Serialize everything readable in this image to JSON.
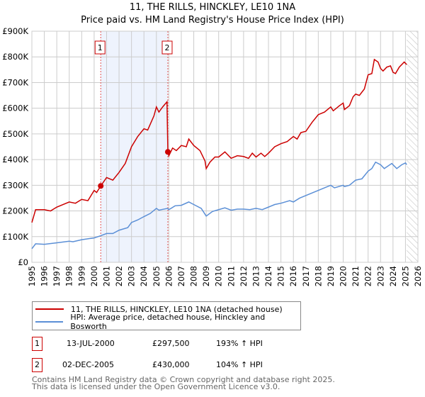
{
  "chart_data": {
    "type": "line",
    "title": "11, THE RILLS, HINCKLEY, LE10 1NA",
    "subtitle": "Price paid vs. HM Land Registry's House Price Index (HPI)",
    "xlim": [
      1995,
      2026
    ],
    "ylim": [
      0,
      900000
    ],
    "y_ticks": [
      {
        "v": 0,
        "label": "£0"
      },
      {
        "v": 100000,
        "label": "£100K"
      },
      {
        "v": 200000,
        "label": "£200K"
      },
      {
        "v": 300000,
        "label": "£300K"
      },
      {
        "v": 400000,
        "label": "£400K"
      },
      {
        "v": 500000,
        "label": "£500K"
      },
      {
        "v": 600000,
        "label": "£600K"
      },
      {
        "v": 700000,
        "label": "£700K"
      },
      {
        "v": 800000,
        "label": "£800K"
      },
      {
        "v": 900000,
        "label": "£900K"
      }
    ],
    "x_ticks": [
      1995,
      1996,
      1997,
      1998,
      1999,
      2000,
      2001,
      2002,
      2003,
      2004,
      2005,
      2006,
      2007,
      2008,
      2009,
      2010,
      2011,
      2012,
      2013,
      2014,
      2015,
      2016,
      2017,
      2018,
      2019,
      2020,
      2021,
      2022,
      2023,
      2024,
      2025,
      2026
    ],
    "grid": true,
    "shaded_range": [
      2000.53,
      2005.92
    ],
    "hatched_from": 2025.1,
    "series": [
      {
        "name": "11, THE RILLS, HINCKLEY, LE10 1NA (detached house)",
        "color": "#cc0000",
        "x": [
          1995,
          1995.3,
          1996,
          1996.5,
          1997,
          1998,
          1998.5,
          1999,
          1999.5,
          2000,
          2000.2,
          2000.53,
          2001,
          2001.5,
          2002,
          2002.5,
          2003,
          2003.5,
          2004,
          2004.3,
          2004.8,
          2005,
          2005.2,
          2005.5,
          2005.85,
          2005.92,
          2006,
          2006.3,
          2006.6,
          2007,
          2007.4,
          2007.6,
          2008,
          2008.5,
          2008.9,
          2009,
          2009.3,
          2009.7,
          2010,
          2010.5,
          2011,
          2011.5,
          2012,
          2012.4,
          2012.7,
          2013,
          2013.4,
          2013.7,
          2014,
          2014.5,
          2015,
          2015.5,
          2016,
          2016.3,
          2016.6,
          2017,
          2017.5,
          2018,
          2018.5,
          2019,
          2019.2,
          2019.7,
          2020,
          2020.1,
          2020.5,
          2020.8,
          2021,
          2021.3,
          2021.7,
          2022,
          2022.3,
          2022.5,
          2022.8,
          2023,
          2023.2,
          2023.5,
          2023.8,
          2024,
          2024.2,
          2024.5,
          2024.9,
          2025.1
        ],
        "y": [
          155000,
          205000,
          205000,
          200000,
          215000,
          235000,
          230000,
          245000,
          240000,
          280000,
          272000,
          297500,
          330000,
          320000,
          350000,
          385000,
          450000,
          490000,
          520000,
          515000,
          570000,
          605000,
          585000,
          605000,
          625000,
          430000,
          415000,
          445000,
          435000,
          455000,
          450000,
          480000,
          455000,
          435000,
          395000,
          365000,
          390000,
          410000,
          410000,
          430000,
          405000,
          415000,
          412000,
          405000,
          425000,
          410000,
          425000,
          412000,
          425000,
          450000,
          462000,
          470000,
          490000,
          480000,
          505000,
          510000,
          545000,
          575000,
          585000,
          605000,
          590000,
          610000,
          620000,
          595000,
          610000,
          645000,
          655000,
          650000,
          675000,
          730000,
          735000,
          790000,
          780000,
          755000,
          745000,
          760000,
          765000,
          740000,
          735000,
          760000,
          780000,
          770000
        ]
      },
      {
        "name": "HPI: Average price, detached house, Hinckley and Bosworth",
        "color": "#5b8fd6",
        "x": [
          1995,
          1995.3,
          1996,
          1997,
          1998,
          1998.3,
          1999,
          2000,
          2000.5,
          2001,
          2001.5,
          2002,
          2002.7,
          2003,
          2003.5,
          2004,
          2004.5,
          2005,
          2005.2,
          2005.9,
          2006,
          2006.5,
          2007,
          2007.6,
          2008,
          2008.6,
          2009,
          2009.5,
          2010,
          2010.5,
          2011,
          2011.5,
          2012,
          2012.5,
          2013,
          2013.5,
          2014,
          2014.5,
          2015,
          2015.7,
          2016,
          2016.5,
          2017,
          2017.5,
          2018,
          2018.5,
          2019,
          2019.3,
          2020,
          2020.1,
          2020.5,
          2021,
          2021.5,
          2022,
          2022.3,
          2022.6,
          2023,
          2023.3,
          2023.9,
          2024.3,
          2024.7,
          2025,
          2025.1
        ],
        "y": [
          53000,
          72000,
          70000,
          76000,
          82000,
          80000,
          88000,
          95000,
          103000,
          112000,
          112000,
          125000,
          135000,
          155000,
          165000,
          178000,
          190000,
          210000,
          203000,
          210000,
          205000,
          220000,
          222000,
          235000,
          225000,
          210000,
          180000,
          198000,
          205000,
          212000,
          203000,
          207000,
          207000,
          205000,
          210000,
          205000,
          215000,
          225000,
          230000,
          240000,
          235000,
          250000,
          260000,
          270000,
          280000,
          290000,
          300000,
          290000,
          300000,
          295000,
          300000,
          320000,
          325000,
          355000,
          365000,
          390000,
          380000,
          365000,
          385000,
          365000,
          380000,
          387000,
          380000
        ]
      }
    ],
    "sales": [
      {
        "n": "1",
        "x": 2000.53,
        "y": 297500
      },
      {
        "n": "2",
        "x": 2005.92,
        "y": 430000
      }
    ]
  },
  "legend": {
    "property": "11, THE RILLS, HINCKLEY, LE10 1NA (detached house)",
    "hpi": "HPI: Average price, detached house, Hinckley and Bosworth"
  },
  "transactions": [
    {
      "n": "1",
      "date": "13-JUL-2000",
      "price": "£297,500",
      "hpi": "193% ↑ HPI"
    },
    {
      "n": "2",
      "date": "02-DEC-2005",
      "price": "£430,000",
      "hpi": "104% ↑ HPI"
    }
  ],
  "footer": {
    "line1": "Contains HM Land Registry data © Crown copyright and database right 2025.",
    "line2": "This data is licensed under the Open Government Licence v3.0."
  }
}
